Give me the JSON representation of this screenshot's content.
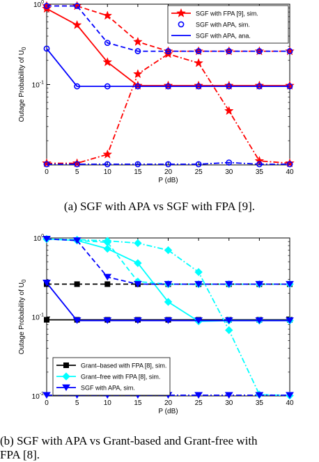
{
  "colors": {
    "red": "#ff0000",
    "blue": "#0000ff",
    "cyan": "#00ffff",
    "black": "#000000"
  },
  "captions": {
    "a": "(a) SGF with APA vs SGF with FPA [9].",
    "b_line1": "(b) SGF with APA vs Grant-based and Grant-free with",
    "b_line2": "FPA [8]."
  },
  "chart_data": [
    {
      "type": "line",
      "title": "",
      "xlabel": "P (dB)",
      "ylabel": "Outage Probability of U",
      "ylabel_subscript": "0",
      "yscale": "log",
      "x": [
        0,
        5,
        10,
        15,
        20,
        25,
        30,
        35,
        40
      ],
      "xlim": [
        0,
        40
      ],
      "ylim": [
        0.01,
        1
      ],
      "xticks": [
        "0",
        "5",
        "10",
        "15",
        "20",
        "25",
        "30",
        "35",
        "40"
      ],
      "yticks": [
        {
          "base": "10",
          "exp": "0"
        },
        {
          "base": "10",
          "exp": "-1"
        }
      ],
      "legend_position": "top-right",
      "legend": [
        {
          "label": "SGF with FPA [9], sim.",
          "color": "#ff0000",
          "marker": "star",
          "dash": "solid"
        },
        {
          "label": "SGF with APA, sim.",
          "color": "#0000ff",
          "marker": "circle",
          "dash": "none"
        },
        {
          "label": "SGF with APA, ana.",
          "color": "#0000ff",
          "marker": "none",
          "dash": "solid"
        }
      ],
      "series": [
        {
          "color": "#ff0000",
          "marker": "star",
          "dash": "solid",
          "values": [
            0.88,
            0.55,
            0.19,
            0.097,
            0.097,
            0.097,
            0.097,
            0.097,
            0.097
          ]
        },
        {
          "color": "#ff0000",
          "marker": "star",
          "dash": "dashed",
          "values": [
            0.95,
            0.95,
            0.72,
            0.34,
            0.26,
            0.26,
            0.26,
            0.26,
            0.26
          ]
        },
        {
          "color": "#ff0000",
          "marker": "star",
          "dash": "dashdot",
          "values": [
            0.0105,
            0.0105,
            0.0135,
            0.135,
            0.24,
            0.185,
            0.047,
            0.0112,
            0.0105
          ]
        },
        {
          "color": "#0000ff",
          "marker": "circle",
          "dash": "solid",
          "values": [
            0.28,
            0.095,
            0.095,
            0.095,
            0.095,
            0.095,
            0.095,
            0.095,
            0.095
          ]
        },
        {
          "color": "#0000ff",
          "marker": "circle",
          "dash": "dashed",
          "values": [
            0.95,
            0.95,
            0.33,
            0.26,
            0.26,
            0.26,
            0.26,
            0.26,
            0.26
          ]
        },
        {
          "color": "#0000ff",
          "marker": "circle",
          "dash": "dashdot",
          "values": [
            0.0102,
            0.0102,
            0.0102,
            0.0102,
            0.0102,
            0.0102,
            0.0107,
            0.0102,
            0.0102
          ]
        }
      ]
    },
    {
      "type": "line",
      "title": "",
      "xlabel": "P (dB)",
      "ylabel": "Outage Probability of U",
      "ylabel_subscript": "0",
      "yscale": "log",
      "x": [
        0,
        5,
        10,
        15,
        20,
        25,
        30,
        35,
        40
      ],
      "xlim": [
        0,
        40
      ],
      "ylim": [
        0.01,
        1
      ],
      "xticks": [
        "0",
        "5",
        "10",
        "15",
        "20",
        "25",
        "30",
        "35",
        "40"
      ],
      "yticks": [
        {
          "base": "10",
          "exp": "0"
        },
        {
          "base": "10",
          "exp": "-1"
        },
        {
          "base": "10",
          "exp": "-2"
        }
      ],
      "legend_position": "bottom-left",
      "legend": [
        {
          "label": "Grant–based with FPA [8], sim.",
          "color": "#000000",
          "marker": "square",
          "dash": "solid"
        },
        {
          "label": "Grant–free with FPA [8], sim.",
          "color": "#00ffff",
          "marker": "diamond",
          "dash": "solid"
        },
        {
          "label": "SGF with APA, sim.",
          "color": "#0000ff",
          "marker": "triangle-down",
          "dash": "solid"
        }
      ],
      "series": [
        {
          "color": "#000000",
          "marker": "square",
          "dash": "solid",
          "values": [
            0.092,
            0.092,
            0.092,
            0.092,
            0.092,
            0.092,
            0.092,
            0.092,
            0.092
          ]
        },
        {
          "color": "#000000",
          "marker": "square",
          "dash": "dashed",
          "values": [
            0.26,
            0.26,
            0.26,
            0.26,
            0.26,
            0.26,
            0.26,
            0.26,
            0.26
          ]
        },
        {
          "color": "#00ffff",
          "marker": "diamond",
          "dash": "solid",
          "values": [
            0.97,
            0.93,
            0.73,
            0.48,
            0.155,
            0.088,
            0.09,
            0.09,
            0.09
          ]
        },
        {
          "color": "#00ffff",
          "marker": "diamond",
          "dash": "dashed",
          "values": [
            0.97,
            0.93,
            0.88,
            0.28,
            0.26,
            0.26,
            0.26,
            0.26,
            0.26
          ]
        },
        {
          "color": "#00ffff",
          "marker": "diamond",
          "dash": "dashdot",
          "values": [
            0.97,
            0.95,
            0.92,
            0.86,
            0.7,
            0.37,
            0.068,
            0.0104,
            0.0101
          ]
        },
        {
          "color": "#0000ff",
          "marker": "triangle-down",
          "dash": "solid",
          "values": [
            0.27,
            0.09,
            0.09,
            0.09,
            0.09,
            0.09,
            0.09,
            0.09,
            0.09
          ]
        },
        {
          "color": "#0000ff",
          "marker": "triangle-down",
          "dash": "dashed",
          "values": [
            0.97,
            0.93,
            0.32,
            0.26,
            0.26,
            0.26,
            0.26,
            0.26,
            0.26
          ]
        },
        {
          "color": "#0000ff",
          "marker": "triangle-down",
          "dash": "dashdot",
          "values": [
            0.0102,
            0.0102,
            0.0102,
            0.0102,
            0.0102,
            0.0102,
            0.0102,
            0.0102,
            0.0102
          ]
        }
      ]
    }
  ]
}
